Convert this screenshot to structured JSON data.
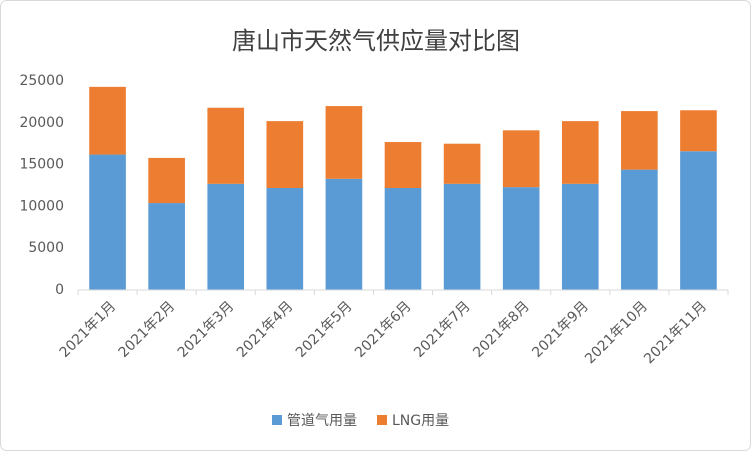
{
  "chart_data": {
    "type": "stacked_bar",
    "title": "唐山市天然气供应量对比图",
    "categories": [
      "2021年1月",
      "2021年2月",
      "2021年3月",
      "2021年4月",
      "2021年5月",
      "2021年6月",
      "2021年7月",
      "2021年8月",
      "2021年9月",
      "2021年10月",
      "2021年11月"
    ],
    "series": [
      {
        "name": "管道气用量",
        "color": "#5b9bd5",
        "values": [
          16200,
          10400,
          12700,
          12200,
          13300,
          12200,
          12700,
          12300,
          12700,
          14400,
          16600
        ]
      },
      {
        "name": "LNG用量",
        "color": "#ed7d31",
        "values": [
          8100,
          5400,
          9100,
          8000,
          8700,
          5500,
          4800,
          6800,
          7500,
          7000,
          4900
        ]
      }
    ],
    "ylim": [
      0,
      25000
    ],
    "yticks": [
      0,
      5000,
      10000,
      15000,
      20000,
      25000
    ],
    "grid": false,
    "legend": "bottom"
  }
}
